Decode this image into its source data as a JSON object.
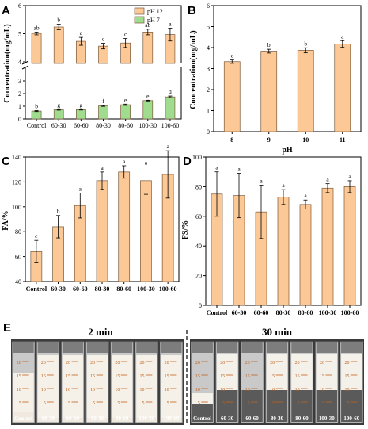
{
  "panels": {
    "A": "A",
    "B": "B",
    "C": "C",
    "D": "D",
    "E": "E"
  },
  "colors": {
    "orange": "#fbc896",
    "green": "#9fdc8e",
    "edge": "#7a5a3a",
    "axis": "#000000"
  },
  "chart_data": [
    {
      "panel": "A",
      "type": "bar",
      "categories": [
        "Control",
        "60-30",
        "60-60",
        "80-30",
        "80-60",
        "100-30",
        "100-60"
      ],
      "ylabel": "Concentration(mg/mL)",
      "broken_axis": true,
      "ylim_lower": [
        0,
        4
      ],
      "ylim_upper": [
        4,
        6
      ],
      "yticks": [
        "0",
        "1",
        "2",
        "3",
        "4",
        "5",
        "6"
      ],
      "legend": "top-right",
      "series": [
        {
          "name": "pH 12",
          "color": "#fbc896",
          "values": [
            5.01,
            5.24,
            4.73,
            4.56,
            4.67,
            5.06,
            4.97
          ],
          "errors": [
            0.05,
            0.1,
            0.14,
            0.1,
            0.16,
            0.1,
            0.23
          ],
          "letters": [
            "ab",
            "b",
            "c",
            "c",
            "c",
            "ab",
            "a"
          ]
        },
        {
          "name": "pH 7",
          "color": "#9fdc8e",
          "values": [
            0.62,
            0.72,
            0.73,
            1.03,
            1.12,
            1.45,
            1.74
          ],
          "errors": [
            0.04,
            0.03,
            0.03,
            0.04,
            0.05,
            0.03,
            0.07
          ],
          "letters": [
            "b",
            "g",
            "g",
            "f",
            "e",
            "e",
            "d"
          ]
        }
      ]
    },
    {
      "panel": "B",
      "type": "bar",
      "categories": [
        "8",
        "9",
        "10",
        "11"
      ],
      "xlabel": "pH",
      "ylabel": "Concentration(mg/mL)",
      "ylim": [
        0,
        6
      ],
      "yticks": [
        "0",
        "1",
        "2",
        "3",
        "4",
        "5",
        "6"
      ],
      "values": [
        3.33,
        3.83,
        3.87,
        4.17
      ],
      "errors": [
        0.08,
        0.09,
        0.12,
        0.16
      ],
      "letters": [
        "c",
        "b",
        "b",
        "a"
      ]
    },
    {
      "panel": "C",
      "type": "bar",
      "categories": [
        "Control",
        "60-30",
        "60-60",
        "80-30",
        "80-60",
        "100-30",
        "100-60"
      ],
      "ylabel": "FA/%",
      "ylim": [
        40,
        140
      ],
      "yticks": [
        "40",
        "60",
        "80",
        "100",
        "120",
        "140"
      ],
      "values": [
        64,
        84,
        101,
        121,
        128,
        121,
        126
      ],
      "errors": [
        9,
        9,
        10,
        7,
        5,
        11,
        19
      ],
      "letters": [
        "c",
        "b",
        "a",
        "a",
        "a",
        "a",
        "a"
      ]
    },
    {
      "panel": "D",
      "type": "bar",
      "categories": [
        "Control",
        "60-30",
        "60-60",
        "80-30",
        "80-60",
        "100-30",
        "100-60"
      ],
      "ylabel": "FS/%",
      "ylim": [
        0,
        100
      ],
      "yticks": [
        "0",
        "20",
        "40",
        "60",
        "80",
        "100"
      ],
      "values": [
        75,
        74,
        63,
        73,
        68,
        79,
        80
      ],
      "errors": [
        15,
        15,
        18,
        5,
        3,
        3,
        4
      ],
      "letters": [
        "a",
        "a",
        "a",
        "a",
        "a",
        "a",
        "a"
      ]
    }
  ],
  "photo": {
    "left_title": "2 min",
    "right_title": "30 min",
    "tubes": [
      "Control",
      "60-30",
      "60-60",
      "80-30",
      "80-60",
      "100-30",
      "100-60"
    ],
    "marks": [
      "20",
      "15",
      "10",
      "5"
    ]
  }
}
